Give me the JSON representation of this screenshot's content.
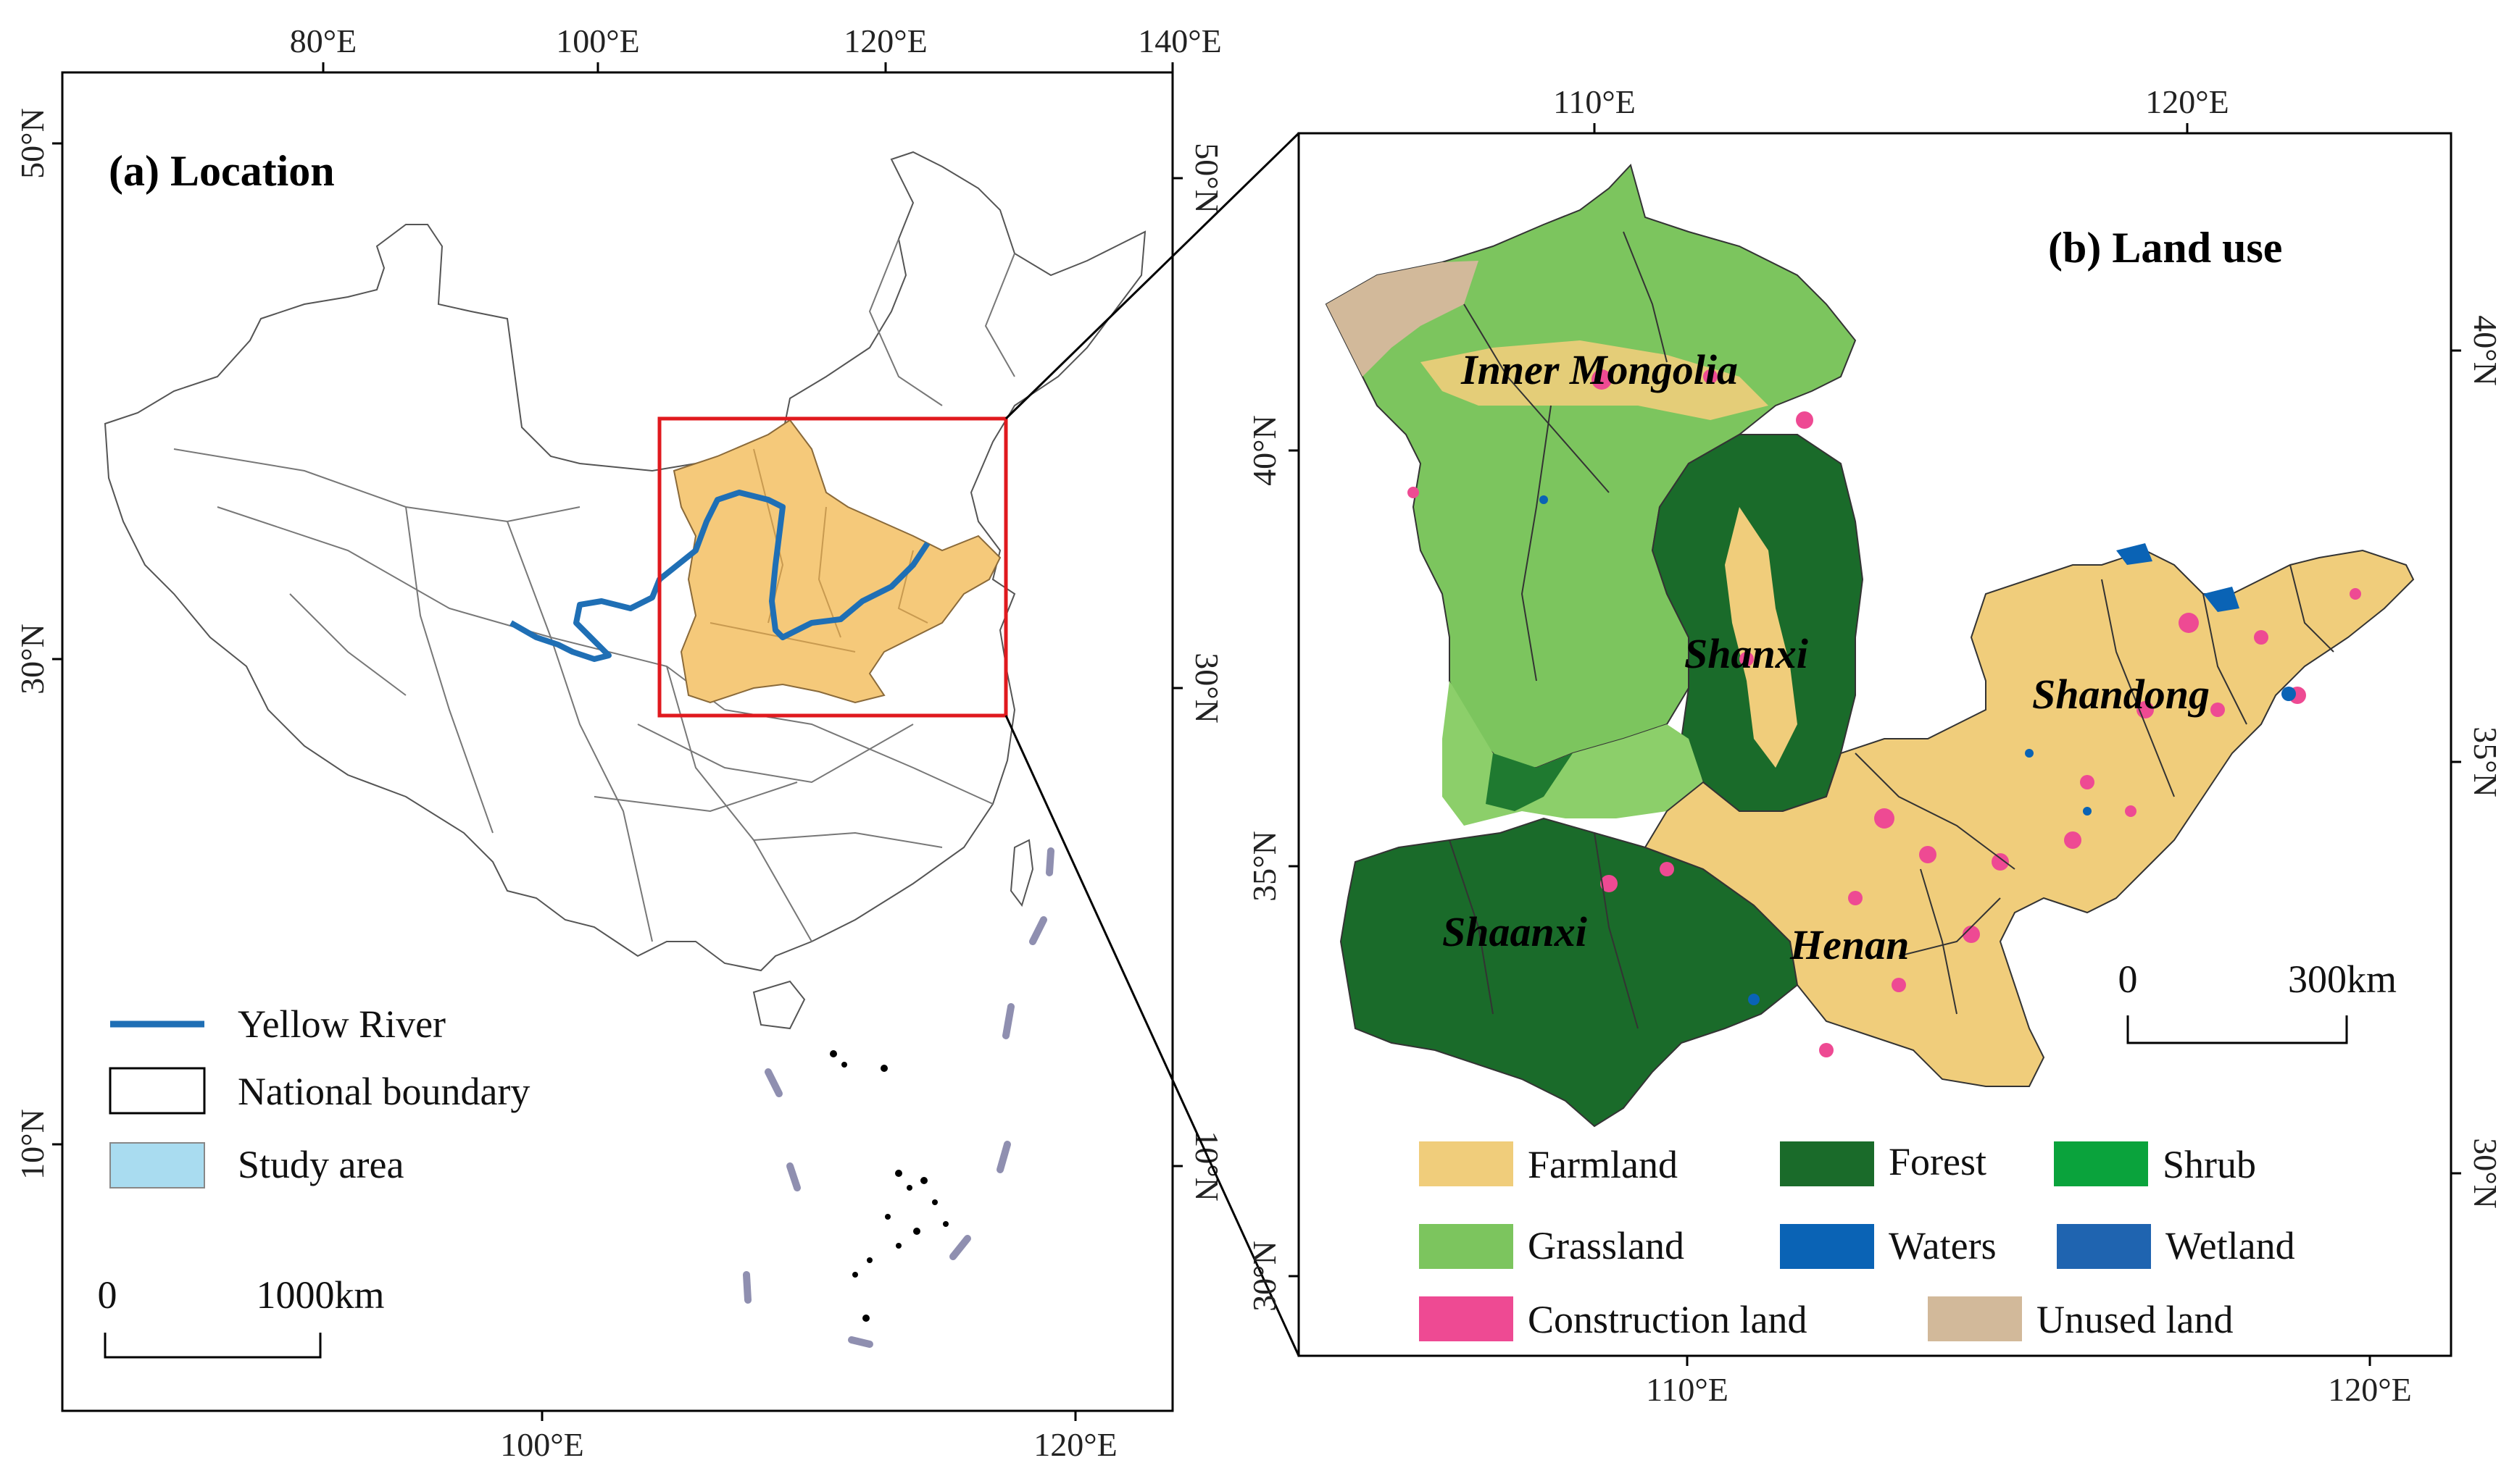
{
  "panel_a": {
    "title": "(a) Location",
    "top_ticks": [
      "80°E",
      "100°E",
      "120°E",
      "140°E"
    ],
    "bottom_ticks": [
      "100°E",
      "120°E"
    ],
    "left_ticks": [
      "50°N",
      "30°N",
      "10°N"
    ],
    "right_ticks": [
      "50°N",
      "30°N",
      "10°N"
    ],
    "legend": {
      "yellow_river": "Yellow River",
      "national_boundary": "National boundary",
      "study_area": "Study area"
    },
    "scale": {
      "start": "0",
      "end": "1000km"
    },
    "colors": {
      "river": "#1f6fb5",
      "study_area_fill": "#f5c97a",
      "study_area_legend": "#a9dcf0",
      "frame_box": "#e0191e",
      "dash": "#8f8fb0"
    }
  },
  "panel_b": {
    "title": "(b) Land use",
    "top_ticks": [
      "110°E",
      "120°E"
    ],
    "bottom_ticks": [
      "110°E",
      "120°E"
    ],
    "left_ticks": [
      "40°N",
      "35°N",
      "30°N"
    ],
    "right_ticks": [
      "40°N",
      "35°N",
      "30°N"
    ],
    "provinces": {
      "inner_mongolia": "Inner Mongolia",
      "shanxi": "Shanxi",
      "shandong": "Shandong",
      "shaanxi": "Shaanxi",
      "henan": "Henan"
    },
    "scale": {
      "start": "0",
      "end": "300km"
    },
    "legend": [
      {
        "label": "Farmland",
        "color": "#f0cd7b"
      },
      {
        "label": "Forest",
        "color": "#1a6b2a"
      },
      {
        "label": "Shrub",
        "color": "#0aa33c"
      },
      {
        "label": "Grassland",
        "color": "#7cc55e"
      },
      {
        "label": "Waters",
        "color": "#0a63b5"
      },
      {
        "label": "Wetland",
        "color": "#1f64b0"
      },
      {
        "label": "Construction land",
        "color": "#ee4a93"
      },
      {
        "label": "Unused land",
        "color": "#d2b99a"
      }
    ]
  }
}
